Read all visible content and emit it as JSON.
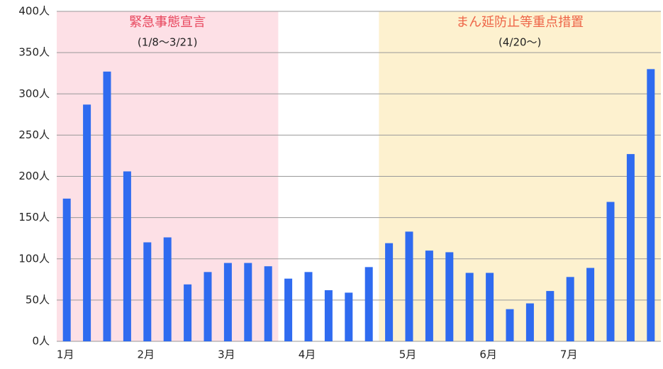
{
  "chart_data": {
    "type": "bar",
    "categories": [
      "1月",
      null,
      null,
      null,
      "2月",
      null,
      null,
      null,
      "3月",
      null,
      null,
      null,
      "4月",
      null,
      null,
      null,
      null,
      "5月",
      null,
      null,
      null,
      "6月",
      null,
      null,
      null,
      "7月",
      null,
      null,
      null,
      null
    ],
    "values": [
      173,
      287,
      327,
      206,
      120,
      126,
      69,
      84,
      95,
      95,
      91,
      76,
      84,
      62,
      59,
      90,
      119,
      133,
      110,
      108,
      83,
      83,
      39,
      46,
      61,
      78,
      89,
      169,
      227,
      330
    ],
    "color": "#2f6bf0",
    "ylim": [
      0,
      400
    ],
    "yticks": [
      {
        "value": 0,
        "label": "0人"
      },
      {
        "value": 50,
        "label": "50人"
      },
      {
        "value": 100,
        "label": "100人"
      },
      {
        "value": 150,
        "label": "150人"
      },
      {
        "value": 200,
        "label": "200人"
      },
      {
        "value": 250,
        "label": "250人"
      },
      {
        "value": 300,
        "label": "300人"
      },
      {
        "value": 350,
        "label": "350人"
      },
      {
        "value": 400,
        "label": "400人"
      }
    ],
    "grid": true,
    "annotations": [
      {
        "title": "緊急事態宣言",
        "period": "(1/8〜3/21)",
        "color": "#fde0e6",
        "text_color": "#e8455c"
      },
      {
        "title": "まん延防止等重点措置",
        "period": "(4/20〜)",
        "color": "#fdf1cf",
        "text_color": "#ee6548"
      }
    ]
  }
}
